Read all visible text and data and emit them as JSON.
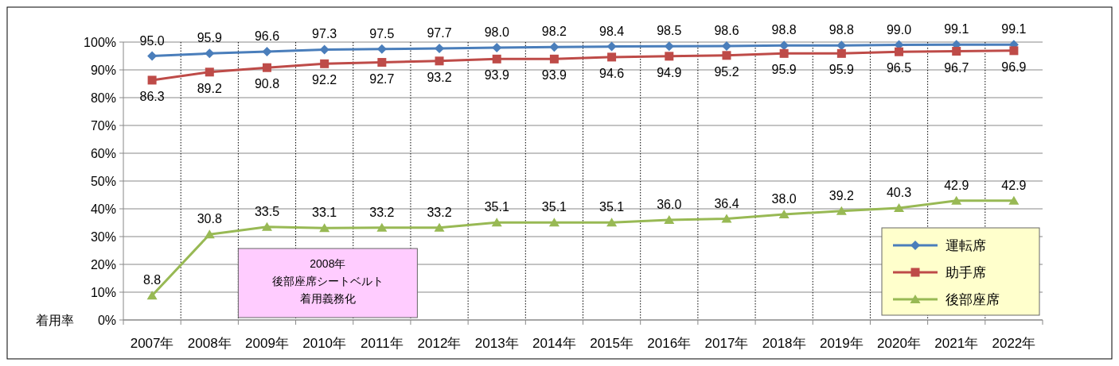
{
  "chart_data": {
    "type": "line",
    "categories": [
      "2007年",
      "2008年",
      "2009年",
      "2010年",
      "2011年",
      "2012年",
      "2013年",
      "2014年",
      "2015年",
      "2016年",
      "2017年",
      "2018年",
      "2019年",
      "2020年",
      "2021年",
      "2022年"
    ],
    "series": [
      {
        "name": "運転席",
        "color": "#4a7ebb",
        "marker": "diamond",
        "values": [
          95.0,
          95.9,
          96.6,
          97.3,
          97.5,
          97.7,
          98.0,
          98.2,
          98.4,
          98.5,
          98.6,
          98.8,
          98.8,
          99.0,
          99.1,
          99.1
        ],
        "value_labels": [
          "95.0",
          "95.9",
          "96.6",
          "97.3",
          "97.5",
          "97.7",
          "98.0",
          "98.2",
          "98.4",
          "98.5",
          "98.6",
          "98.8",
          "98.8",
          "99.0",
          "99.1",
          "99.1"
        ]
      },
      {
        "name": "助手席",
        "color": "#be4b48",
        "marker": "square",
        "values": [
          86.3,
          89.2,
          90.8,
          92.2,
          92.7,
          93.2,
          93.9,
          93.9,
          94.6,
          94.9,
          95.2,
          95.9,
          95.9,
          96.5,
          96.7,
          96.9
        ],
        "value_labels": [
          "86.3",
          "89.2",
          "90.8",
          "92.2",
          "92.7",
          "93.2",
          "93.9",
          "93.9",
          "94.6",
          "94.9",
          "95.2",
          "95.9",
          "95.9",
          "96.5",
          "96.7",
          "96.9"
        ]
      },
      {
        "name": "後部座席",
        "color": "#98b954",
        "marker": "triangle",
        "values": [
          8.8,
          30.8,
          33.5,
          33.1,
          33.2,
          33.2,
          35.1,
          35.1,
          35.1,
          36.0,
          36.4,
          38.0,
          39.2,
          40.3,
          42.9,
          42.9
        ],
        "value_labels": [
          "8.8",
          "30.8",
          "33.5",
          "33.1",
          "33.2",
          "33.2",
          "35.1",
          "35.1",
          "35.1",
          "36.0",
          "36.4",
          "38.0",
          "39.2",
          "40.3",
          "42.9",
          "42.9"
        ]
      }
    ],
    "ylabel": "着用率",
    "ylim": [
      0,
      100
    ],
    "yticks": [
      {
        "value": 0,
        "label": "0%"
      },
      {
        "value": 10,
        "label": "10%"
      },
      {
        "value": 20,
        "label": "20%"
      },
      {
        "value": 30,
        "label": "30%"
      },
      {
        "value": 40,
        "label": "40%"
      },
      {
        "value": 50,
        "label": "50%"
      },
      {
        "value": 60,
        "label": "60%"
      },
      {
        "value": 70,
        "label": "70%"
      },
      {
        "value": 80,
        "label": "80%"
      },
      {
        "value": 90,
        "label": "90%"
      },
      {
        "value": 100,
        "label": "100%"
      }
    ],
    "annotations": [
      "2008年",
      "後部座席シートベルト",
      "着用義務化"
    ],
    "grid": true,
    "legend": "bottom right",
    "line_style": "solid"
  }
}
